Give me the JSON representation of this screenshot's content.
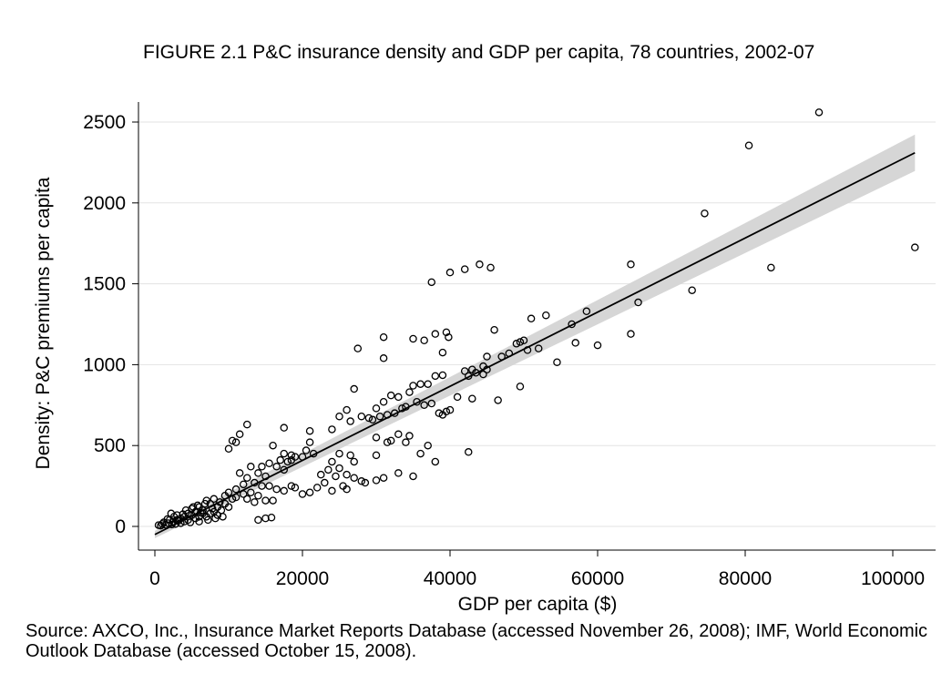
{
  "chart_data": {
    "type": "scatter",
    "title": "FIGURE 2.1 P&C insurance density and GDP per capita, 78 countries, 2002-07",
    "xlabel": "GDP per capita ($)",
    "ylabel": "Density: P&C premiums per capita",
    "xlim": [
      0,
      105000
    ],
    "ylim": [
      -100,
      2650
    ],
    "xticks": [
      0,
      20000,
      40000,
      60000,
      80000,
      100000
    ],
    "yticks": [
      0,
      500,
      1000,
      1500,
      2000,
      2500
    ],
    "grid": "horizontal",
    "fit_line": {
      "x": [
        0,
        103000
      ],
      "y": [
        -50,
        2310
      ]
    },
    "points": [
      [
        90000,
        2560
      ],
      [
        80500,
        2355
      ],
      [
        74500,
        1935
      ],
      [
        83500,
        1600
      ],
      [
        103000,
        1725
      ],
      [
        72800,
        1460
      ],
      [
        64500,
        1620
      ],
      [
        64500,
        1190
      ],
      [
        65500,
        1385
      ],
      [
        58500,
        1330
      ],
      [
        56500,
        1250
      ],
      [
        57000,
        1135
      ],
      [
        60000,
        1120
      ],
      [
        53000,
        1305
      ],
      [
        51000,
        1285
      ],
      [
        50000,
        1150
      ],
      [
        49000,
        1130
      ],
      [
        49500,
        1140
      ],
      [
        52000,
        1100
      ],
      [
        54500,
        1015
      ],
      [
        50500,
        1090
      ],
      [
        49500,
        865
      ],
      [
        44000,
        1620
      ],
      [
        42000,
        1590
      ],
      [
        40000,
        1570
      ],
      [
        45500,
        1600
      ],
      [
        37500,
        1510
      ],
      [
        46000,
        1215
      ],
      [
        38000,
        1190
      ],
      [
        39500,
        1200
      ],
      [
        31000,
        1170
      ],
      [
        35000,
        1160
      ],
      [
        36500,
        1150
      ],
      [
        39800,
        1170
      ],
      [
        27500,
        1100
      ],
      [
        31000,
        1040
      ],
      [
        39000,
        1075
      ],
      [
        45000,
        1050
      ],
      [
        44500,
        990
      ],
      [
        45000,
        970
      ],
      [
        47000,
        1050
      ],
      [
        48000,
        1070
      ],
      [
        43000,
        970
      ],
      [
        42000,
        960
      ],
      [
        44500,
        940
      ],
      [
        43500,
        950
      ],
      [
        42500,
        930
      ],
      [
        46500,
        780
      ],
      [
        43000,
        790
      ],
      [
        38000,
        930
      ],
      [
        39000,
        935
      ],
      [
        36000,
        880
      ],
      [
        37000,
        880
      ],
      [
        35000,
        870
      ],
      [
        41000,
        800
      ],
      [
        40000,
        720
      ],
      [
        38500,
        700
      ],
      [
        39500,
        710
      ],
      [
        39000,
        690
      ],
      [
        34500,
        830
      ],
      [
        35500,
        770
      ],
      [
        33000,
        800
      ],
      [
        32000,
        810
      ],
      [
        31000,
        770
      ],
      [
        30000,
        730
      ],
      [
        30500,
        680
      ],
      [
        29500,
        660
      ],
      [
        31500,
        690
      ],
      [
        32500,
        700
      ],
      [
        33500,
        730
      ],
      [
        34000,
        740
      ],
      [
        37500,
        760
      ],
      [
        36500,
        750
      ],
      [
        27000,
        850
      ],
      [
        26000,
        720
      ],
      [
        25000,
        680
      ],
      [
        24000,
        600
      ],
      [
        26500,
        650
      ],
      [
        28000,
        680
      ],
      [
        29000,
        670
      ],
      [
        42500,
        460
      ],
      [
        38000,
        400
      ],
      [
        35000,
        310
      ],
      [
        33000,
        330
      ],
      [
        31000,
        300
      ],
      [
        30000,
        285
      ],
      [
        28500,
        270
      ],
      [
        28000,
        280
      ],
      [
        36000,
        450
      ],
      [
        37000,
        500
      ],
      [
        34000,
        520
      ],
      [
        34500,
        560
      ],
      [
        33000,
        570
      ],
      [
        32000,
        530
      ],
      [
        30000,
        550
      ],
      [
        31500,
        520
      ],
      [
        30000,
        440
      ],
      [
        27000,
        400
      ],
      [
        26500,
        440
      ],
      [
        25000,
        450
      ],
      [
        24000,
        400
      ],
      [
        25000,
        360
      ],
      [
        24500,
        310
      ],
      [
        26000,
        320
      ],
      [
        27000,
        300
      ],
      [
        26000,
        230
      ],
      [
        23500,
        350
      ],
      [
        22500,
        320
      ],
      [
        23000,
        270
      ],
      [
        22000,
        240
      ],
      [
        21000,
        210
      ],
      [
        24000,
        220
      ],
      [
        25500,
        250
      ],
      [
        20000,
        200
      ],
      [
        21000,
        590
      ],
      [
        21000,
        520
      ],
      [
        20500,
        470
      ],
      [
        21500,
        450
      ],
      [
        18500,
        440
      ],
      [
        17500,
        450
      ],
      [
        19000,
        430
      ],
      [
        20000,
        430
      ],
      [
        17000,
        410
      ],
      [
        18000,
        400
      ],
      [
        18500,
        410
      ],
      [
        16500,
        370
      ],
      [
        17500,
        350
      ],
      [
        18500,
        250
      ],
      [
        19000,
        240
      ],
      [
        16500,
        230
      ],
      [
        17500,
        220
      ],
      [
        12500,
        630
      ],
      [
        11500,
        570
      ],
      [
        11000,
        520
      ],
      [
        10500,
        530
      ],
      [
        10000,
        480
      ],
      [
        16000,
        500
      ],
      [
        17500,
        610
      ],
      [
        15500,
        390
      ],
      [
        14500,
        370
      ],
      [
        13000,
        370
      ],
      [
        14000,
        330
      ],
      [
        15000,
        310
      ],
      [
        12500,
        300
      ],
      [
        11500,
        330
      ],
      [
        13500,
        270
      ],
      [
        14500,
        250
      ],
      [
        15500,
        250
      ],
      [
        12000,
        260
      ],
      [
        11000,
        230
      ],
      [
        12000,
        200
      ],
      [
        11000,
        180
      ],
      [
        13000,
        210
      ],
      [
        14000,
        190
      ],
      [
        15000,
        160
      ],
      [
        16000,
        160
      ],
      [
        13500,
        150
      ],
      [
        12500,
        170
      ],
      [
        14000,
        40
      ],
      [
        15000,
        50
      ],
      [
        15800,
        55
      ],
      [
        10000,
        210
      ],
      [
        9500,
        190
      ],
      [
        10500,
        170
      ],
      [
        9500,
        140
      ],
      [
        10000,
        120
      ],
      [
        8800,
        150
      ],
      [
        8500,
        120
      ],
      [
        9000,
        100
      ],
      [
        8000,
        170
      ],
      [
        7500,
        140
      ],
      [
        7000,
        160
      ],
      [
        8000,
        90
      ],
      [
        7500,
        80
      ],
      [
        8500,
        70
      ],
      [
        7000,
        60
      ],
      [
        6500,
        100
      ],
      [
        6000,
        120
      ],
      [
        6500,
        80
      ],
      [
        6000,
        60
      ],
      [
        5500,
        90
      ],
      [
        5000,
        70
      ],
      [
        5500,
        50
      ],
      [
        4500,
        80
      ],
      [
        4000,
        60
      ],
      [
        4500,
        40
      ],
      [
        3500,
        50
      ],
      [
        3000,
        40
      ],
      [
        4000,
        30
      ],
      [
        3500,
        20
      ],
      [
        2500,
        30
      ],
      [
        2000,
        40
      ],
      [
        1800,
        20
      ],
      [
        2200,
        80
      ],
      [
        1500,
        10
      ],
      [
        1000,
        15
      ],
      [
        800,
        5
      ],
      [
        500,
        8
      ],
      [
        1200,
        25
      ],
      [
        2800,
        15
      ],
      [
        3200,
        35
      ],
      [
        5000,
        110
      ],
      [
        6000,
        30
      ],
      [
        7200,
        40
      ],
      [
        8200,
        50
      ],
      [
        9200,
        60
      ],
      [
        6800,
        140
      ],
      [
        7800,
        110
      ],
      [
        2600,
        60
      ],
      [
        3000,
        70
      ],
      [
        3800,
        75
      ],
      [
        4200,
        100
      ],
      [
        5200,
        120
      ],
      [
        5800,
        130
      ],
      [
        6200,
        85
      ],
      [
        4800,
        25
      ],
      [
        2300,
        12
      ],
      [
        1700,
        45
      ]
    ]
  },
  "source_text": "Source: AXCO, Inc., Insurance Market Reports Database (accessed November 26, 2008); IMF, World Economic Outlook Database (accessed October 15, 2008)."
}
